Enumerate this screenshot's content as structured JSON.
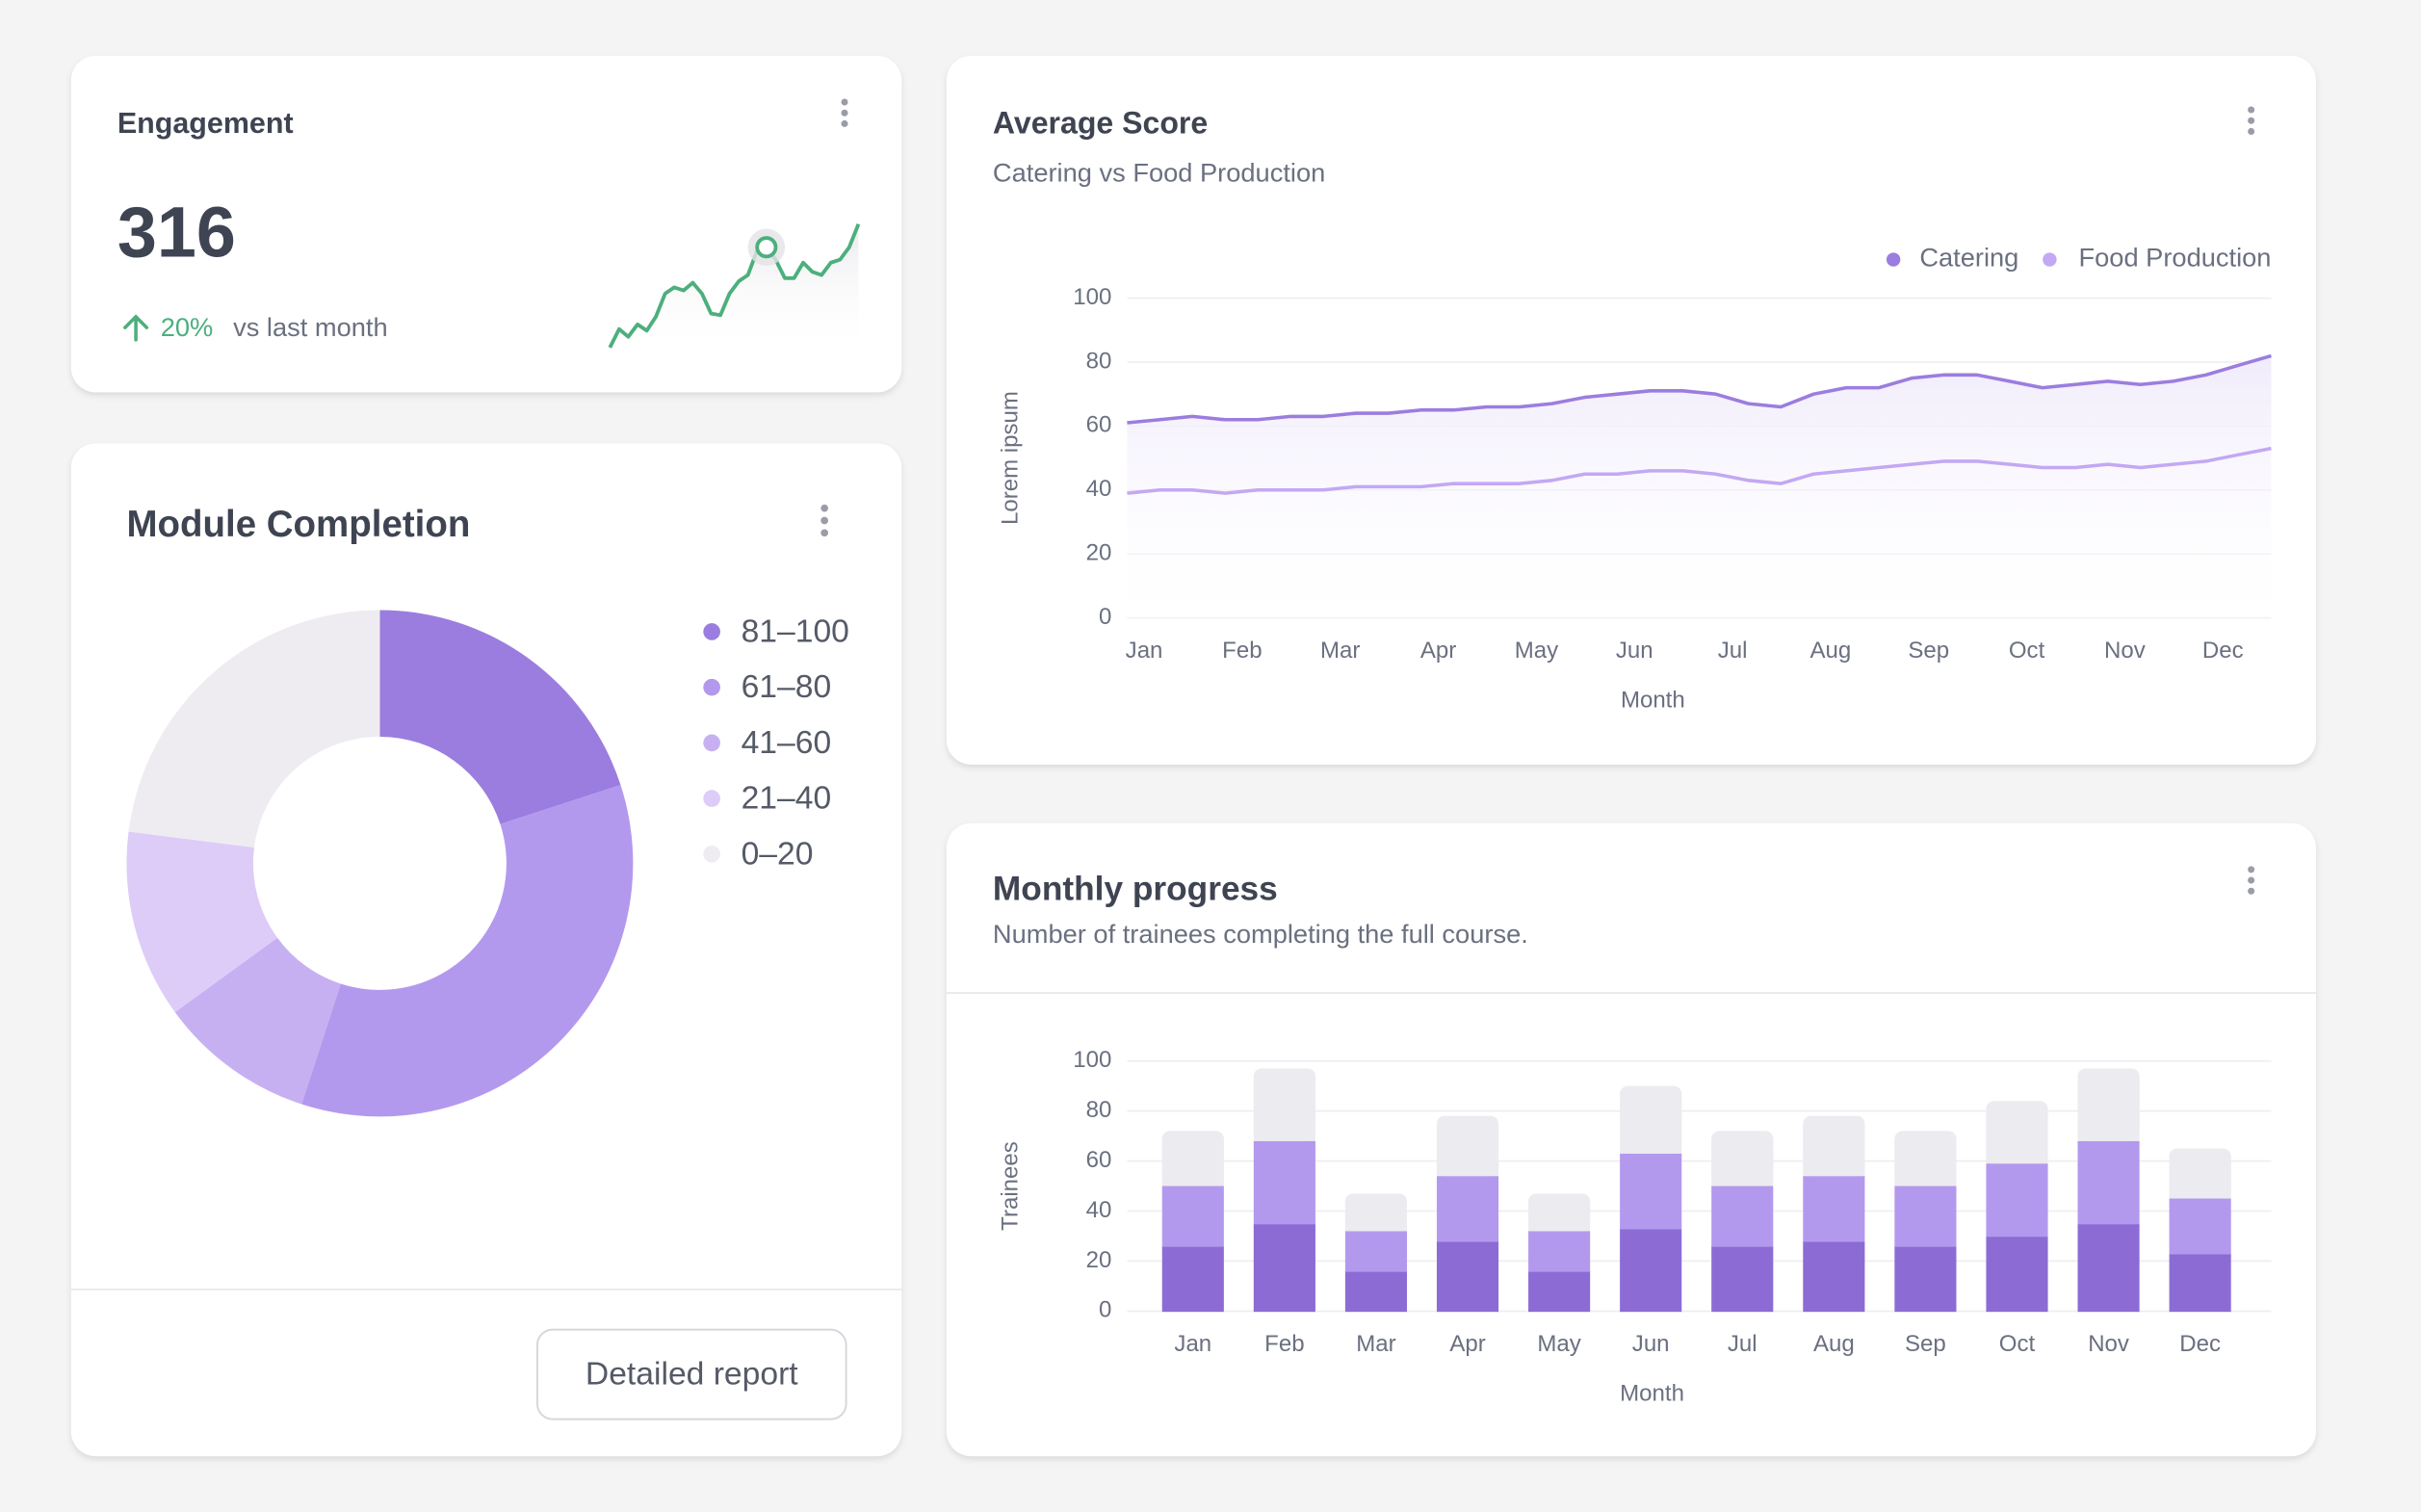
{
  "engagement": {
    "title": "Engagement",
    "value": 316,
    "change": {
      "value": 20,
      "label": "20%"
    },
    "comparison": "vs last month"
  },
  "module_button": "Detailed report",
  "chart_data": [
    {
      "type": "sparkline",
      "color": "#4caf7d",
      "values": [
        5,
        17,
        12,
        20,
        16,
        25,
        40,
        44,
        42,
        47,
        40,
        27,
        26,
        40,
        48,
        52,
        68,
        70,
        62,
        50,
        50,
        60,
        54,
        52,
        60,
        62,
        70,
        85
      ],
      "highlight": 17
    },
    {
      "type": "line",
      "title": "Average Score",
      "subtitle": "Catering vs Food Production",
      "categories": [
        "Jan",
        null,
        null,
        "Feb",
        null,
        null,
        "Mar",
        null,
        null,
        "Apr",
        null,
        null,
        "May",
        null,
        null,
        "Jun",
        null,
        null,
        "Jul",
        null,
        null,
        "Aug",
        null,
        null,
        "Sep",
        null,
        null,
        "Oct",
        null,
        null,
        "Nov",
        null,
        null,
        "Dec",
        null,
        null
      ],
      "series": [
        {
          "name": "Catering",
          "color": "#9b7ddf",
          "values": [
            61,
            62,
            63,
            62,
            62,
            63,
            63,
            64,
            64,
            65,
            65,
            66,
            66,
            67,
            69,
            70,
            71,
            71,
            70,
            67,
            66,
            70,
            72,
            72,
            75,
            76,
            76,
            74,
            72,
            73,
            74,
            73,
            74,
            76,
            79,
            82
          ]
        },
        {
          "name": "Food Production",
          "color": "#c3a8f3",
          "values": [
            39,
            40,
            40,
            39,
            40,
            40,
            40,
            41,
            41,
            41,
            42,
            42,
            42,
            43,
            45,
            45,
            46,
            46,
            45,
            43,
            42,
            45,
            46,
            47,
            48,
            49,
            49,
            48,
            47,
            47,
            48,
            47,
            48,
            49,
            51,
            53
          ]
        }
      ],
      "ylim": [
        0,
        100
      ],
      "yticks": [
        0,
        20,
        40,
        60,
        80,
        100
      ],
      "ylabel": "Lorem ipsum",
      "xlabel": "Month",
      "grid": true,
      "legend": "top-right"
    },
    {
      "type": "donut",
      "title": "Module Completion",
      "categories": [
        "81–100",
        "61–80",
        "41–60",
        "21–40",
        "0–20"
      ],
      "values": [
        20,
        35,
        10,
        12,
        23
      ],
      "colors": [
        "#9b7ddf",
        "#b399ee",
        "#c7b0f2",
        "#ddccf7",
        "#eeecf1"
      ],
      "legend": "right"
    },
    {
      "type": "stacked-bar",
      "title": "Monthly progress",
      "subtitle": "Number of trainees completing the full course.",
      "categories": [
        "Jan",
        "Feb",
        "Mar",
        "Apr",
        "May",
        "Jun",
        "Jul",
        "Aug",
        "Sep",
        "Oct",
        "Nov",
        "Dec"
      ],
      "series": [
        {
          "color": "#8c6cd4",
          "values": [
            26,
            35,
            16,
            28,
            16,
            33,
            26,
            28,
            26,
            30,
            35,
            23
          ]
        },
        {
          "color": "#b399ee",
          "values": [
            24,
            33,
            16,
            26,
            16,
            30,
            24,
            26,
            24,
            29,
            33,
            22
          ]
        },
        {
          "color": "#ecebf0",
          "values": [
            22,
            29,
            15,
            24,
            15,
            27,
            22,
            24,
            22,
            25,
            29,
            20
          ]
        }
      ],
      "ylim": [
        0,
        100
      ],
      "yticks": [
        0,
        20,
        40,
        60,
        80,
        100
      ],
      "ylabel": "Trainees",
      "xlabel": "Month",
      "grid": true
    }
  ]
}
